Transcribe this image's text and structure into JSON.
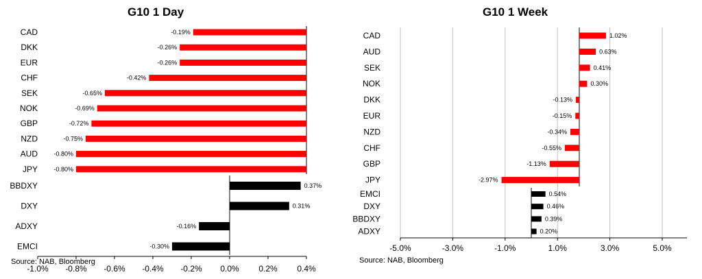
{
  "source_note": "Source: NAB, Bloomberg",
  "colors": {
    "g10_bar": "#ff0000",
    "index_bar": "#000000",
    "axis": "#000000",
    "grid": "#bfbfbf"
  },
  "chart_data": [
    {
      "type": "bar",
      "orientation": "horizontal",
      "title": "G10 1 Day",
      "xlim": [
        -1.0,
        0.4
      ],
      "x_ticks": [
        "-1.0%",
        "-0.8%",
        "-0.6%",
        "-0.4%",
        "-0.2%",
        "0.0%",
        "0.2%",
        "0.4%"
      ],
      "series": [
        {
          "categories": [
            "CAD",
            "DKK",
            "EUR",
            "CHF",
            "SEK",
            "NOK",
            "GBP",
            "NZD",
            "AUD",
            "JPY"
          ],
          "values": [
            -0.19,
            -0.26,
            -0.26,
            -0.42,
            -0.65,
            -0.69,
            -0.72,
            -0.75,
            -0.8,
            -0.8
          ],
          "labels": [
            "-0.19%",
            "-0.26%",
            "-0.26%",
            "-0.42%",
            "-0.65%",
            "-0.69%",
            "-0.72%",
            "-0.75%",
            "-0.80%",
            "-0.80%"
          ],
          "color": "#ff0000"
        },
        {
          "categories": [
            "BBDXY",
            "DXY",
            "ADXY",
            "EMCI"
          ],
          "values": [
            0.37,
            0.31,
            -0.16,
            -0.3
          ],
          "labels": [
            "0.37%",
            "0.31%",
            "-0.16%",
            "-0.30%"
          ],
          "color": "#000000"
        }
      ]
    },
    {
      "type": "bar",
      "orientation": "horizontal",
      "title": "G10 1 Week",
      "xlim": [
        -5.0,
        5.0
      ],
      "x_ticks": [
        "-5.0%",
        "-3.0%",
        "-1.0%",
        "1.0%",
        "3.0%",
        "5.0%"
      ],
      "grid": true,
      "series": [
        {
          "categories": [
            "CAD",
            "AUD",
            "SEK",
            "NOK",
            "DKK",
            "EUR",
            "NZD",
            "CHF",
            "GBP",
            "JPY"
          ],
          "values": [
            1.02,
            0.63,
            0.41,
            0.3,
            -0.13,
            -0.15,
            -0.34,
            -0.55,
            -1.13,
            -2.97
          ],
          "labels": [
            "1.02%",
            "0.63%",
            "0.41%",
            "0.30%",
            "-0.13%",
            "-0.15%",
            "-0.34%",
            "-0.55%",
            "-1.13%",
            "-2.97%"
          ],
          "color": "#ff0000"
        },
        {
          "categories": [
            "EMCI",
            "DXY",
            "BBDXY",
            "ADXY"
          ],
          "values": [
            0.54,
            0.46,
            0.39,
            0.2
          ],
          "labels": [
            "0.54%",
            "0.46%",
            "0.39%",
            "0.20%"
          ],
          "color": "#000000"
        }
      ]
    }
  ]
}
